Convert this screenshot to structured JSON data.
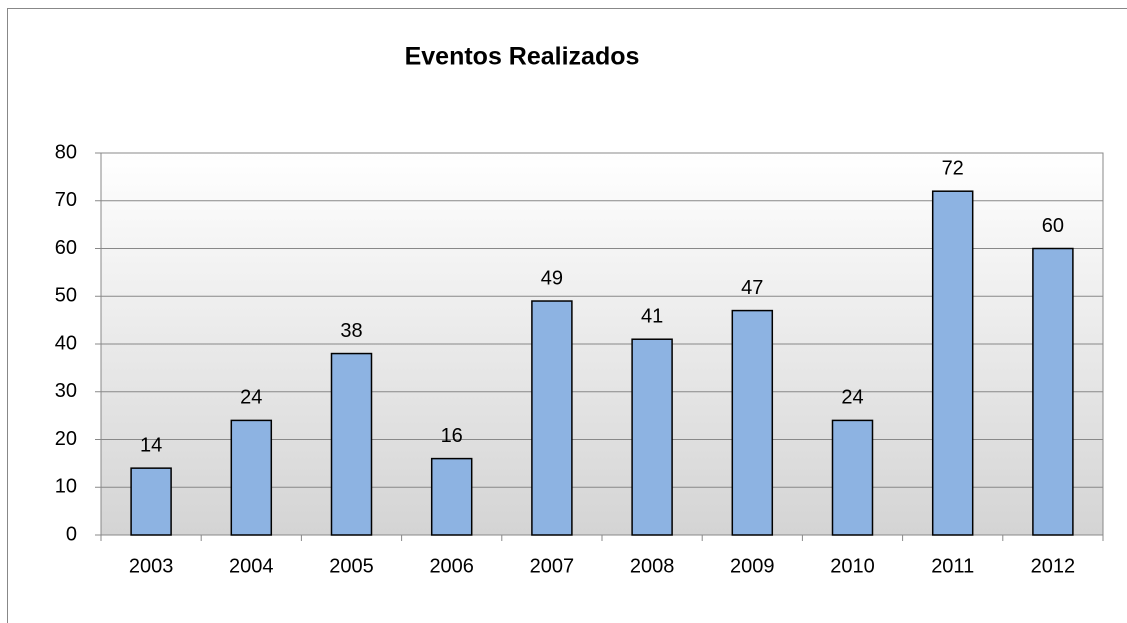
{
  "chart_data": {
    "type": "bar",
    "title": "Eventos Realizados",
    "categories": [
      "2003",
      "2004",
      "2005",
      "2006",
      "2007",
      "2008",
      "2009",
      "2010",
      "2011",
      "2012"
    ],
    "values": [
      14,
      24,
      38,
      16,
      49,
      41,
      47,
      24,
      72,
      60
    ],
    "color": "#8db3e2",
    "ylim": [
      0,
      80
    ],
    "yticks": [
      0,
      10,
      20,
      30,
      40,
      50,
      60,
      70,
      80
    ],
    "grid": true
  }
}
